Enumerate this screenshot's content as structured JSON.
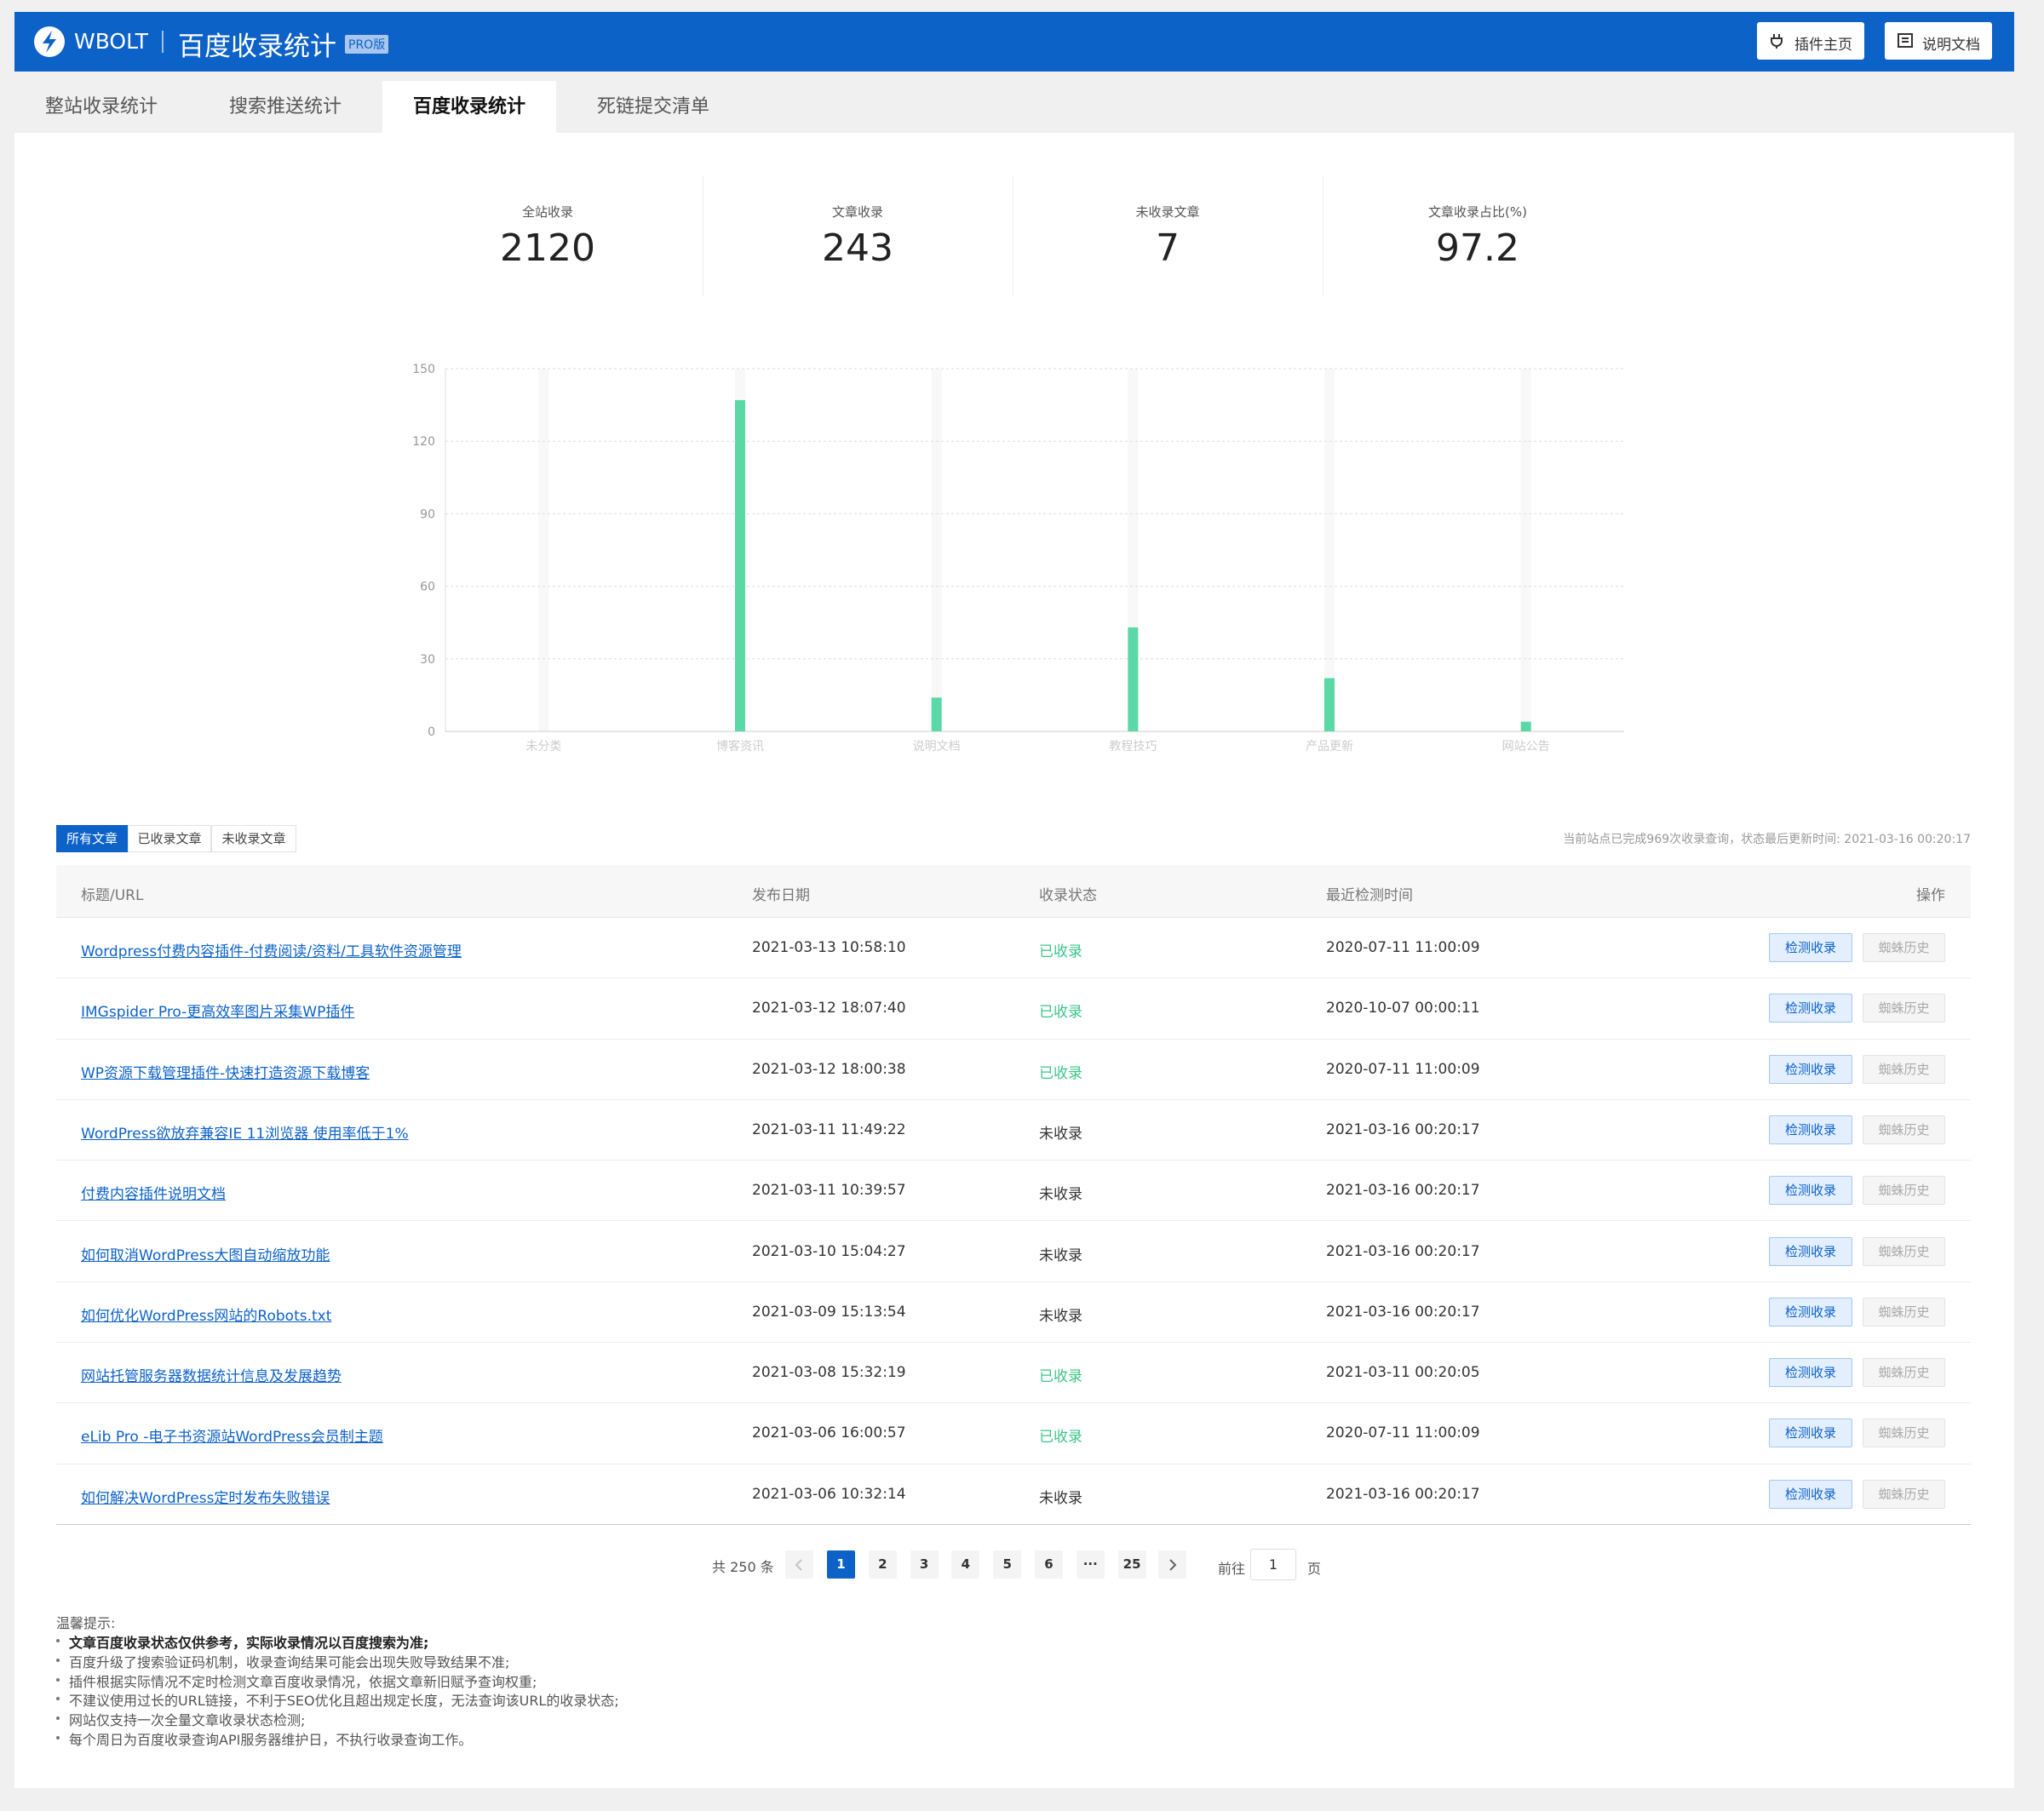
{
  "header": {
    "brand": "WBOLT",
    "title": "百度收录统计",
    "badge": "PRO版",
    "buttons": [
      "插件主页",
      "说明文档"
    ]
  },
  "tabs": [
    "整站收录统计",
    "搜索推送统计",
    "百度收录统计",
    "死链提交清单"
  ],
  "stats": [
    {
      "label": "全站收录",
      "value": 2120
    },
    {
      "label": "文章收录",
      "value": 243
    },
    {
      "label": "未收录文章",
      "value": 7
    },
    {
      "label": "文章收录占比(%)",
      "value": 97.2
    }
  ],
  "chart_data": {
    "type": "bar",
    "categories": [
      "未分类",
      "博客资讯",
      "说明文档",
      "教程技巧",
      "产品更新",
      "网站公告"
    ],
    "values": [
      0,
      137,
      14,
      43,
      22,
      4
    ],
    "color": "#5ad8a6",
    "ylim": [
      0,
      150
    ],
    "yticks": [
      0,
      30,
      60,
      90,
      120,
      150
    ],
    "grid": true
  },
  "filters": [
    "所有文章",
    "已收录文章",
    "未收录文章"
  ],
  "status_note": "当前站点已完成969次收录查询，状态最后更新时间: 2021-03-16 00:20:17",
  "table": {
    "columns": [
      "标题/URL",
      "发布日期",
      "收录状态",
      "最近检测时间",
      "操作"
    ],
    "actions": [
      "检测收录",
      "蜘蛛历史"
    ],
    "rows": [
      {
        "title": "Wordpress付费内容插件-付费阅读/资料/工具软件资源管理",
        "date": "2021-03-13 10:58:10",
        "status": "已收录",
        "indexed": true,
        "checked": "2020-07-11 11:00:09"
      },
      {
        "title": "IMGspider Pro-更高效率图片采集WP插件",
        "date": "2021-03-12 18:07:40",
        "status": "已收录",
        "indexed": true,
        "checked": "2020-10-07 00:00:11"
      },
      {
        "title": "WP资源下载管理插件-快速打造资源下载博客",
        "date": "2021-03-12 18:00:38",
        "status": "已收录",
        "indexed": true,
        "checked": "2020-07-11 11:00:09"
      },
      {
        "title": "WordPress欲放弃兼容IE 11浏览器 使用率低于1%",
        "date": "2021-03-11 11:49:22",
        "status": "未收录",
        "indexed": false,
        "checked": "2021-03-16 00:20:17"
      },
      {
        "title": "付费内容插件说明文档",
        "date": "2021-03-11 10:39:57",
        "status": "未收录",
        "indexed": false,
        "checked": "2021-03-16 00:20:17"
      },
      {
        "title": "如何取消WordPress大图自动缩放功能",
        "date": "2021-03-10 15:04:27",
        "status": "未收录",
        "indexed": false,
        "checked": "2021-03-16 00:20:17"
      },
      {
        "title": "如何优化WordPress网站的Robots.txt",
        "date": "2021-03-09 15:13:54",
        "status": "未收录",
        "indexed": false,
        "checked": "2021-03-16 00:20:17"
      },
      {
        "title": "网站托管服务器数据统计信息及发展趋势",
        "date": "2021-03-08 15:32:19",
        "status": "已收录",
        "indexed": true,
        "checked": "2021-03-11 00:20:05"
      },
      {
        "title": "eLib Pro -电子书资源站WordPress会员制主题",
        "date": "2021-03-06 16:00:57",
        "status": "已收录",
        "indexed": true,
        "checked": "2020-07-11 11:00:09"
      },
      {
        "title": "如何解决WordPress定时发布失败错误",
        "date": "2021-03-06 10:32:14",
        "status": "未收录",
        "indexed": false,
        "checked": "2021-03-16 00:20:17"
      }
    ]
  },
  "pagination": {
    "total": "共 250 条",
    "pages": [
      1,
      2,
      3,
      4,
      5,
      6,
      "···",
      25
    ],
    "current": 1,
    "goto": "前往",
    "input": 1,
    "unit": "页"
  },
  "tips": {
    "title": "温馨提示:",
    "items": [
      "文章百度收录状态仅供参考，实际收录情况以百度搜索为准;",
      "百度升级了搜索验证码机制，收录查询结果可能会出现失败导致结果不准;",
      "插件根据实际情况不定时检测文章百度收录情况，依据文章新旧赋予查询权重;",
      "不建议使用过长的URL链接，不利于SEO优化且超出规定长度，无法查询该URL的收录状态;",
      "网站仅支持一次全量文章收录状态检测;",
      "每个周日为百度收录查询API服务器维护日，不执行收录查询工作。"
    ]
  }
}
